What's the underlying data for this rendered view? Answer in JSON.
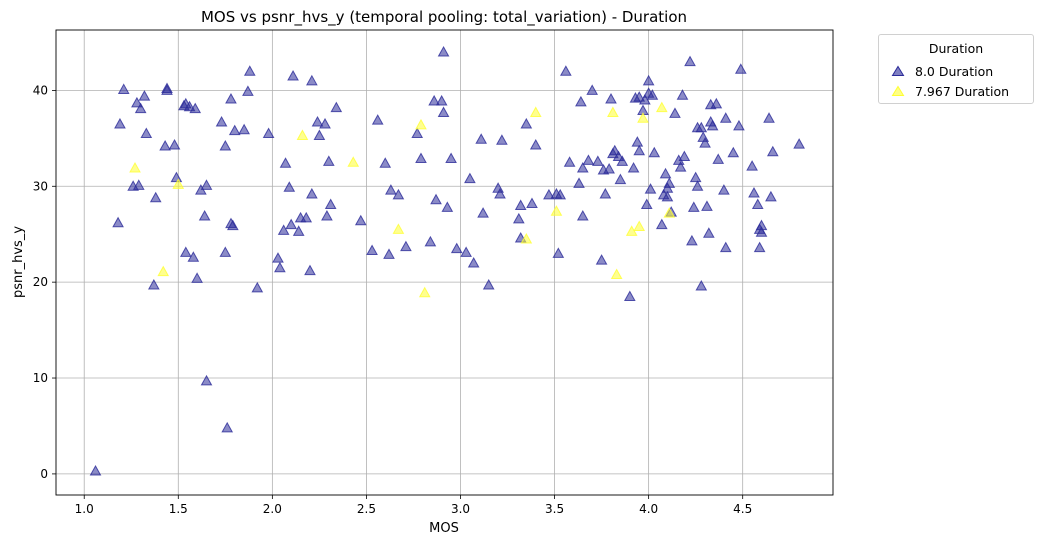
{
  "chart_data": {
    "type": "scatter",
    "title": "MOS vs psnr_hvs_y (temporal pooling: total_variation) - Duration",
    "xlabel": "MOS",
    "ylabel": "psnr_hvs_y",
    "xlim": [
      0.85,
      4.98
    ],
    "ylim": [
      -2.2,
      46.3
    ],
    "xticks": [
      "1.0",
      "1.5",
      "2.0",
      "2.5",
      "3.0",
      "3.5",
      "4.0",
      "4.5"
    ],
    "yticks": [
      "0",
      "10",
      "20",
      "30",
      "40"
    ],
    "grid": true,
    "legend": {
      "title": "Duration",
      "placement": "outside-top-right"
    },
    "marker": "triangle",
    "series": [
      {
        "name": "8.0 Duration",
        "color": "#2b2b99",
        "points": [
          [
            1.06,
            0.3
          ],
          [
            1.18,
            26.2
          ],
          [
            1.19,
            36.5
          ],
          [
            1.21,
            40.1
          ],
          [
            1.26,
            30.0
          ],
          [
            1.28,
            38.7
          ],
          [
            1.29,
            30.1
          ],
          [
            1.3,
            38.1
          ],
          [
            1.32,
            39.4
          ],
          [
            1.33,
            35.5
          ],
          [
            1.37,
            19.7
          ],
          [
            1.38,
            28.8
          ],
          [
            1.43,
            34.2
          ],
          [
            1.44,
            40.2
          ],
          [
            1.44,
            40.0
          ],
          [
            1.48,
            34.3
          ],
          [
            1.49,
            30.9
          ],
          [
            1.53,
            38.4
          ],
          [
            1.54,
            23.1
          ],
          [
            1.54,
            38.6
          ],
          [
            1.56,
            38.3
          ],
          [
            1.58,
            22.6
          ],
          [
            1.59,
            38.1
          ],
          [
            1.6,
            20.4
          ],
          [
            1.62,
            29.6
          ],
          [
            1.64,
            26.9
          ],
          [
            1.65,
            30.1
          ],
          [
            1.65,
            9.7
          ],
          [
            1.73,
            36.7
          ],
          [
            1.75,
            34.2
          ],
          [
            1.75,
            23.1
          ],
          [
            1.76,
            4.8
          ],
          [
            1.78,
            39.1
          ],
          [
            1.78,
            26.1
          ],
          [
            1.79,
            25.9
          ],
          [
            1.8,
            35.8
          ],
          [
            1.85,
            35.9
          ],
          [
            1.87,
            39.9
          ],
          [
            1.88,
            42.0
          ],
          [
            1.92,
            19.4
          ],
          [
            1.98,
            35.5
          ],
          [
            2.03,
            22.5
          ],
          [
            2.04,
            21.5
          ],
          [
            2.06,
            25.4
          ],
          [
            2.07,
            32.4
          ],
          [
            2.09,
            29.9
          ],
          [
            2.1,
            26.0
          ],
          [
            2.11,
            41.5
          ],
          [
            2.14,
            25.3
          ],
          [
            2.15,
            26.7
          ],
          [
            2.18,
            26.7
          ],
          [
            2.2,
            21.2
          ],
          [
            2.21,
            29.2
          ],
          [
            2.21,
            41.0
          ],
          [
            2.24,
            36.7
          ],
          [
            2.25,
            35.3
          ],
          [
            2.28,
            36.5
          ],
          [
            2.29,
            26.9
          ],
          [
            2.3,
            32.6
          ],
          [
            2.31,
            28.1
          ],
          [
            2.34,
            38.2
          ],
          [
            2.47,
            26.4
          ],
          [
            2.53,
            23.3
          ],
          [
            2.56,
            36.9
          ],
          [
            2.6,
            32.4
          ],
          [
            2.62,
            22.9
          ],
          [
            2.63,
            29.6
          ],
          [
            2.67,
            29.1
          ],
          [
            2.71,
            23.7
          ],
          [
            2.77,
            35.5
          ],
          [
            2.79,
            32.9
          ],
          [
            2.84,
            24.2
          ],
          [
            2.86,
            38.9
          ],
          [
            2.87,
            28.6
          ],
          [
            2.9,
            38.9
          ],
          [
            2.91,
            44.0
          ],
          [
            2.91,
            37.7
          ],
          [
            2.93,
            27.8
          ],
          [
            2.95,
            32.9
          ],
          [
            2.98,
            23.5
          ],
          [
            3.03,
            23.1
          ],
          [
            3.05,
            30.8
          ],
          [
            3.07,
            22.0
          ],
          [
            3.11,
            34.9
          ],
          [
            3.12,
            27.2
          ],
          [
            3.15,
            19.7
          ],
          [
            3.2,
            29.8
          ],
          [
            3.21,
            29.2
          ],
          [
            3.22,
            34.8
          ],
          [
            3.31,
            26.6
          ],
          [
            3.32,
            28.0
          ],
          [
            3.32,
            24.6
          ],
          [
            3.35,
            36.5
          ],
          [
            3.38,
            28.2
          ],
          [
            3.4,
            34.3
          ],
          [
            3.47,
            29.1
          ],
          [
            3.51,
            29.2
          ],
          [
            3.52,
            23.0
          ],
          [
            3.53,
            29.1
          ],
          [
            3.56,
            42.0
          ],
          [
            3.58,
            32.5
          ],
          [
            3.63,
            30.3
          ],
          [
            3.64,
            38.8
          ],
          [
            3.65,
            26.9
          ],
          [
            3.65,
            31.9
          ],
          [
            3.68,
            32.7
          ],
          [
            3.7,
            40.0
          ],
          [
            3.73,
            32.6
          ],
          [
            3.75,
            22.3
          ],
          [
            3.76,
            31.7
          ],
          [
            3.77,
            29.2
          ],
          [
            3.79,
            31.8
          ],
          [
            3.8,
            39.1
          ],
          [
            3.81,
            33.4
          ],
          [
            3.82,
            33.7
          ],
          [
            3.84,
            33.1
          ],
          [
            3.85,
            30.7
          ],
          [
            3.86,
            32.6
          ],
          [
            3.9,
            18.5
          ],
          [
            3.92,
            31.9
          ],
          [
            3.93,
            39.2
          ],
          [
            3.94,
            34.6
          ],
          [
            3.95,
            39.3
          ],
          [
            3.95,
            33.7
          ],
          [
            3.97,
            37.9
          ],
          [
            3.98,
            39.0
          ],
          [
            3.99,
            28.1
          ],
          [
            4.0,
            39.7
          ],
          [
            4.0,
            41.0
          ],
          [
            4.01,
            29.7
          ],
          [
            4.02,
            39.5
          ],
          [
            4.03,
            33.5
          ],
          [
            4.07,
            26.0
          ],
          [
            4.08,
            29.1
          ],
          [
            4.09,
            31.3
          ],
          [
            4.1,
            29.8
          ],
          [
            4.1,
            28.9
          ],
          [
            4.11,
            30.3
          ],
          [
            4.12,
            27.3
          ],
          [
            4.14,
            37.6
          ],
          [
            4.16,
            32.7
          ],
          [
            4.17,
            32.0
          ],
          [
            4.18,
            39.5
          ],
          [
            4.19,
            33.1
          ],
          [
            4.22,
            43.0
          ],
          [
            4.23,
            24.3
          ],
          [
            4.24,
            27.8
          ],
          [
            4.25,
            30.9
          ],
          [
            4.26,
            30.0
          ],
          [
            4.26,
            36.1
          ],
          [
            4.28,
            19.6
          ],
          [
            4.28,
            36.1
          ],
          [
            4.29,
            35.1
          ],
          [
            4.3,
            34.5
          ],
          [
            4.31,
            27.9
          ],
          [
            4.32,
            25.1
          ],
          [
            4.33,
            38.5
          ],
          [
            4.33,
            36.7
          ],
          [
            4.34,
            36.3
          ],
          [
            4.36,
            38.6
          ],
          [
            4.37,
            32.8
          ],
          [
            4.4,
            29.6
          ],
          [
            4.41,
            23.6
          ],
          [
            4.41,
            37.1
          ],
          [
            4.45,
            33.5
          ],
          [
            4.48,
            36.3
          ],
          [
            4.49,
            42.2
          ],
          [
            4.55,
            32.1
          ],
          [
            4.56,
            29.3
          ],
          [
            4.58,
            28.1
          ],
          [
            4.59,
            25.5
          ],
          [
            4.59,
            23.6
          ],
          [
            4.6,
            25.9
          ],
          [
            4.6,
            25.2
          ],
          [
            4.64,
            37.1
          ],
          [
            4.65,
            28.9
          ],
          [
            4.66,
            33.6
          ],
          [
            4.8,
            34.4
          ]
        ]
      },
      {
        "name": "7.967 Duration",
        "color": "#ffff33",
        "points": [
          [
            1.27,
            31.9
          ],
          [
            1.42,
            21.1
          ],
          [
            1.5,
            30.2
          ],
          [
            2.16,
            35.3
          ],
          [
            2.43,
            32.5
          ],
          [
            2.67,
            25.5
          ],
          [
            2.79,
            36.4
          ],
          [
            2.81,
            18.9
          ],
          [
            3.35,
            24.5
          ],
          [
            3.4,
            37.7
          ],
          [
            3.51,
            27.4
          ],
          [
            3.81,
            37.7
          ],
          [
            3.83,
            20.8
          ],
          [
            3.91,
            25.3
          ],
          [
            3.95,
            25.8
          ],
          [
            3.97,
            37.1
          ],
          [
            4.07,
            38.2
          ],
          [
            4.11,
            27.2
          ]
        ]
      }
    ]
  }
}
